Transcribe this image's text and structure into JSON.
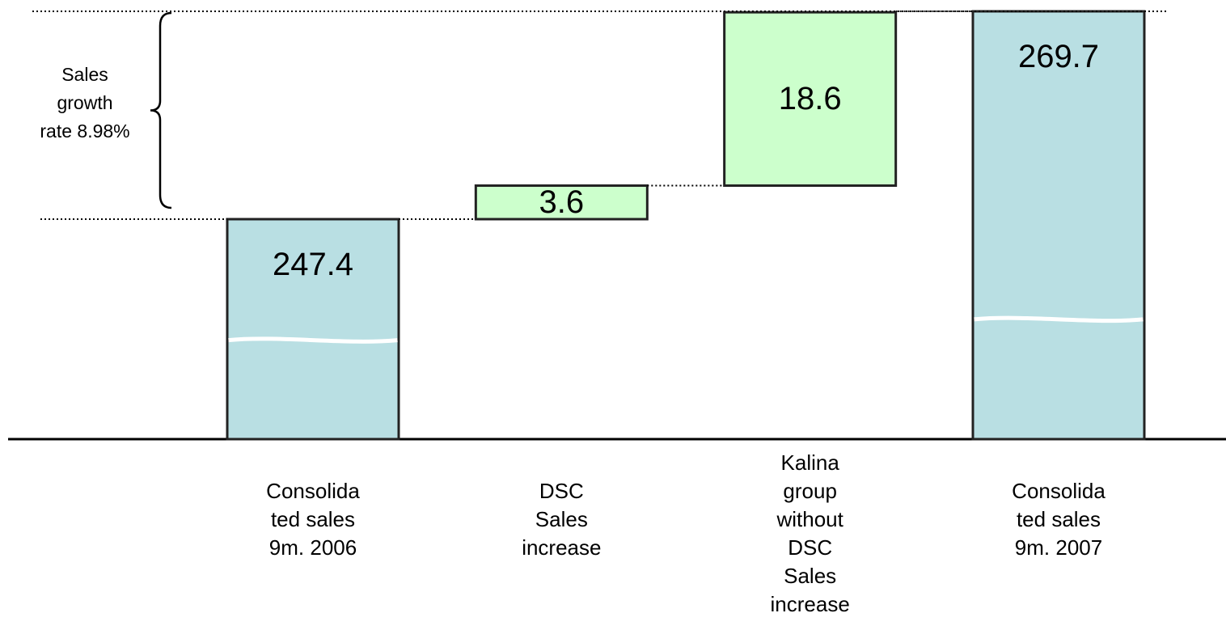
{
  "chart_data": {
    "type": "waterfall",
    "categories": [
      "Consolida\nted sales\n9m. 2006",
      "DSC\nSales\nincrease",
      "Kalina\ngroup\nwithout\nDSC\nSales\nincrease",
      "Consolida\nted sales\n9m. 2007"
    ],
    "values": [
      247.4,
      3.6,
      18.6,
      269.7
    ],
    "kinds": [
      "total",
      "increase",
      "increase",
      "total"
    ],
    "colors": {
      "total": "#b9dfe3",
      "increase": "#ccffcc"
    },
    "annotation": "Sales\ngrowth\nrate 8.98%"
  }
}
